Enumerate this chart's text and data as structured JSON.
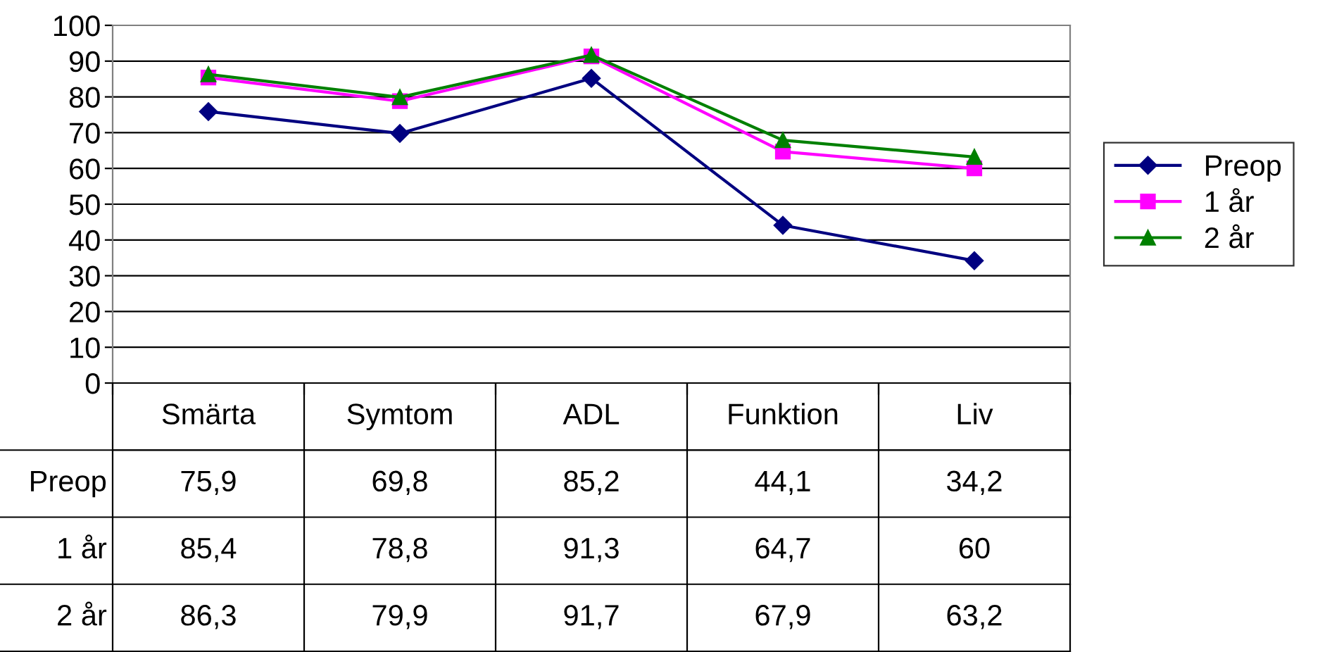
{
  "chart_data": {
    "type": "line",
    "categories": [
      "Smärta",
      "Symtom",
      "ADL",
      "Funktion",
      "Liv"
    ],
    "series": [
      {
        "name": "Preop",
        "color": "#000080",
        "marker": "diamond",
        "values": [
          75.9,
          69.8,
          85.2,
          44.1,
          34.2
        ],
        "value_labels": [
          "75,9",
          "69,8",
          "85,2",
          "44,1",
          "34,2"
        ]
      },
      {
        "name": "1 år",
        "color": "#ff00ff",
        "marker": "square",
        "values": [
          85.4,
          78.8,
          91.3,
          64.7,
          60
        ],
        "value_labels": [
          "85,4",
          "78,8",
          "91,3",
          "64,7",
          "60"
        ]
      },
      {
        "name": "2 år",
        "color": "#008000",
        "marker": "triangle",
        "values": [
          86.3,
          79.9,
          91.7,
          67.9,
          63.2
        ],
        "value_labels": [
          "86,3",
          "79,9",
          "91,7",
          "67,9",
          "63,2"
        ]
      }
    ],
    "ylim": [
      0,
      100
    ],
    "yticks": [
      0,
      10,
      20,
      30,
      40,
      50,
      60,
      70,
      80,
      90,
      100
    ],
    "grid": "y",
    "legend": "right",
    "tick_labels": "y",
    "line_style": "solid"
  }
}
